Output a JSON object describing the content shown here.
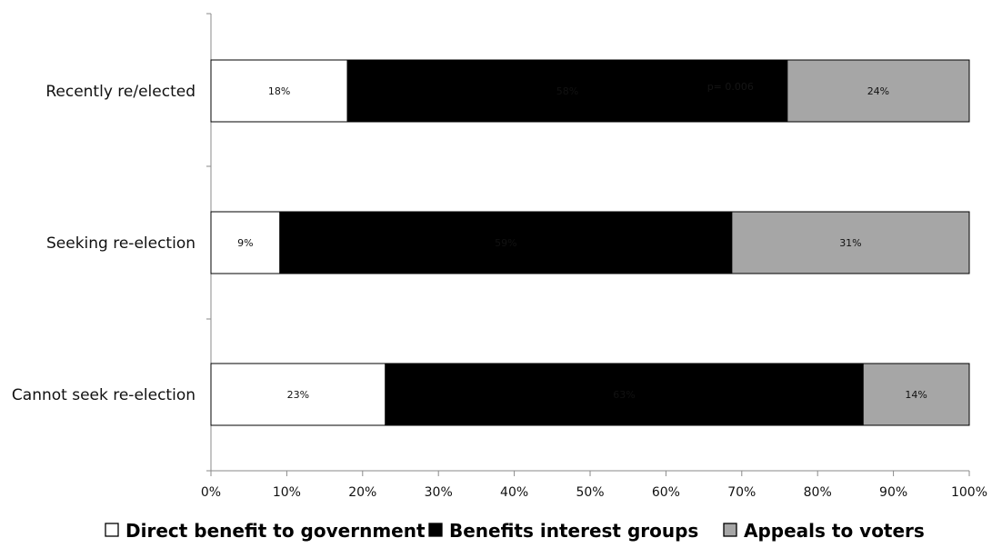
{
  "chart_data": {
    "type": "bar",
    "orientation": "horizontal",
    "stacked": true,
    "categories": [
      "Recently re/elected",
      "Seeking re-election",
      "Cannot seek re-election"
    ],
    "series": [
      {
        "name": "Direct benefit to government",
        "values": [
          18,
          9,
          23
        ],
        "labels": [
          "18%",
          "9%",
          "23%"
        ],
        "color": "#ffffff"
      },
      {
        "name": "Benefits interest groups",
        "values": [
          58,
          59,
          63
        ],
        "labels": [
          "58%",
          "59%",
          "63%"
        ],
        "color": "#000000"
      },
      {
        "name": "Appeals to voters",
        "values": [
          24,
          31,
          14
        ],
        "labels": [
          "24%",
          "31%",
          "14%"
        ],
        "color": "#a6a6a6"
      }
    ],
    "xlim": [
      0,
      100
    ],
    "x_ticks": [
      "0%",
      "10%",
      "20%",
      "30%",
      "40%",
      "50%",
      "60%",
      "70%",
      "80%",
      "90%",
      "100%"
    ],
    "title": "",
    "xlabel": "",
    "ylabel": "",
    "annotation": "p= 0.006",
    "legend": {
      "position": "bottom",
      "entries": [
        {
          "symbol": "□",
          "label": "Direct benefit to government"
        },
        {
          "symbol": "■",
          "label": "Benefits interest groups"
        },
        {
          "symbol": "■",
          "label": "Appeals to voters"
        }
      ]
    },
    "grid": false
  }
}
